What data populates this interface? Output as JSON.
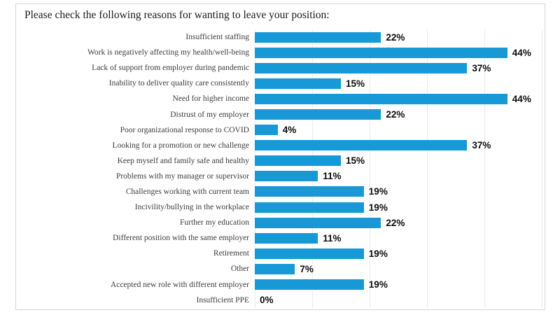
{
  "title": "Please check the following reasons for wanting to leave your position:",
  "colors": {
    "bar": "#1699D6",
    "frame_border": "#D6D6D6",
    "gridline": "#EBEBEB",
    "category_text": "#3C3C3C",
    "value_text": "#0D0D0D",
    "title_text": "#1C1C1C"
  },
  "chart_data": {
    "type": "bar",
    "orientation": "horizontal",
    "title": "Please check the following reasons for wanting to leave your position:",
    "categories": [
      "Insufficient staffing",
      "Work is negatively affecting my health/well-being",
      "Lack of support from employer during pandemic",
      "Inability to deliver quality care consistently",
      "Need for higher income",
      "Distrust of my employer",
      "Poor organizational response to COVID",
      "Looking for a promotion or new challenge",
      "Keep myself and family safe and healthy",
      "Problems with my manager or supervisor",
      "Challenges working with current team",
      "Incivility/bullying in the workplace",
      "Further my education",
      "Different position with the same employer",
      "Retirement",
      "Other",
      "Accepted new role with different employer",
      "Insufficient PPE"
    ],
    "values": [
      22,
      44,
      37,
      15,
      44,
      22,
      4,
      37,
      15,
      11,
      19,
      19,
      22,
      11,
      19,
      7,
      19,
      0
    ],
    "value_labels": [
      "22%",
      "44%",
      "37%",
      "15%",
      "44%",
      "22%",
      "4%",
      "37%",
      "15%",
      "11%",
      "19%",
      "19%",
      "22%",
      "11%",
      "19%",
      "7%",
      "19%",
      "0%"
    ],
    "xlabel": "",
    "ylabel": "",
    "xlim": [
      0,
      50
    ],
    "gridline_interval": 10,
    "grid": true,
    "legend": false,
    "data_labels": true
  }
}
